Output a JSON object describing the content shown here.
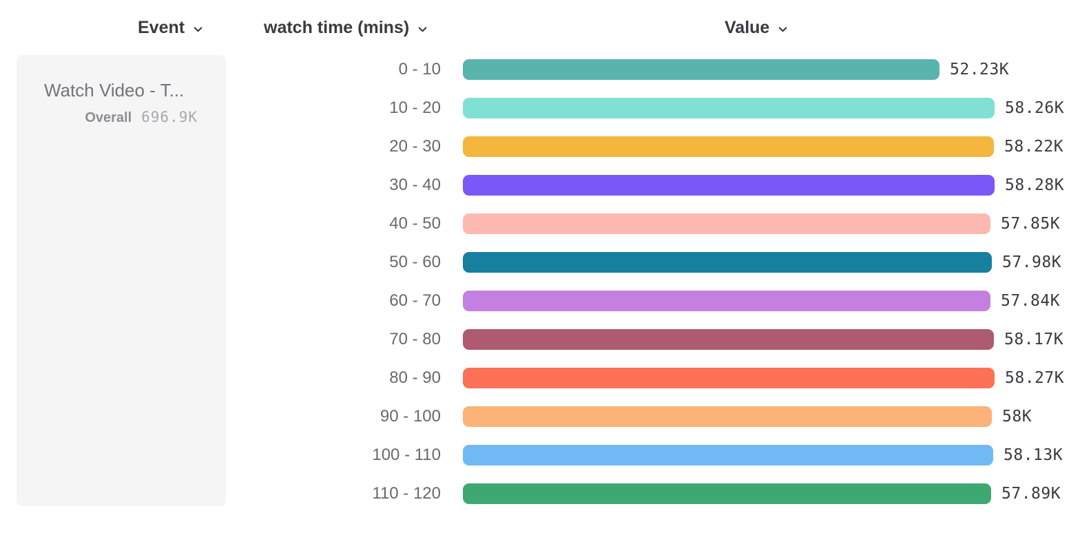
{
  "header": {
    "columns": {
      "event": "Event",
      "breakdown": "watch time (mins)",
      "value": "Value"
    }
  },
  "event_card": {
    "title": "Watch Video - T...",
    "overall_label": "Overall",
    "overall_value": "696.9K"
  },
  "chart_data": {
    "type": "bar",
    "orientation": "horizontal",
    "title": "",
    "xlabel": "Value",
    "ylabel": "watch time (mins)",
    "categories": [
      "0 - 10",
      "10 - 20",
      "20 - 30",
      "30 - 40",
      "40 - 50",
      "50 - 60",
      "60 - 70",
      "70 - 80",
      "80 - 90",
      "90 - 100",
      "100 - 110",
      "110 - 120"
    ],
    "values": [
      52230,
      58260,
      58220,
      58280,
      57850,
      57980,
      57840,
      58170,
      58270,
      58000,
      58130,
      57890
    ],
    "value_labels": [
      "52.23K",
      "58.26K",
      "58.22K",
      "58.28K",
      "57.85K",
      "57.98K",
      "57.84K",
      "58.17K",
      "58.27K",
      "58K",
      "58.13K",
      "57.89K"
    ],
    "colors": [
      "#58b4ac",
      "#7fe0d3",
      "#f4b63d",
      "#7a57f7",
      "#fdb9b0",
      "#16809e",
      "#c480e0",
      "#ae5a71",
      "#fd7156",
      "#fbb378",
      "#71b9f4",
      "#3ea873"
    ],
    "xlim": [
      0,
      58280
    ],
    "grid": false,
    "legend": false,
    "series_total": "696.9K"
  },
  "ui_colors": {
    "header_text": "#3a3a40",
    "category_text": "#68686f",
    "value_text": "#3a3a40",
    "card_background": "#f5f5f6"
  }
}
